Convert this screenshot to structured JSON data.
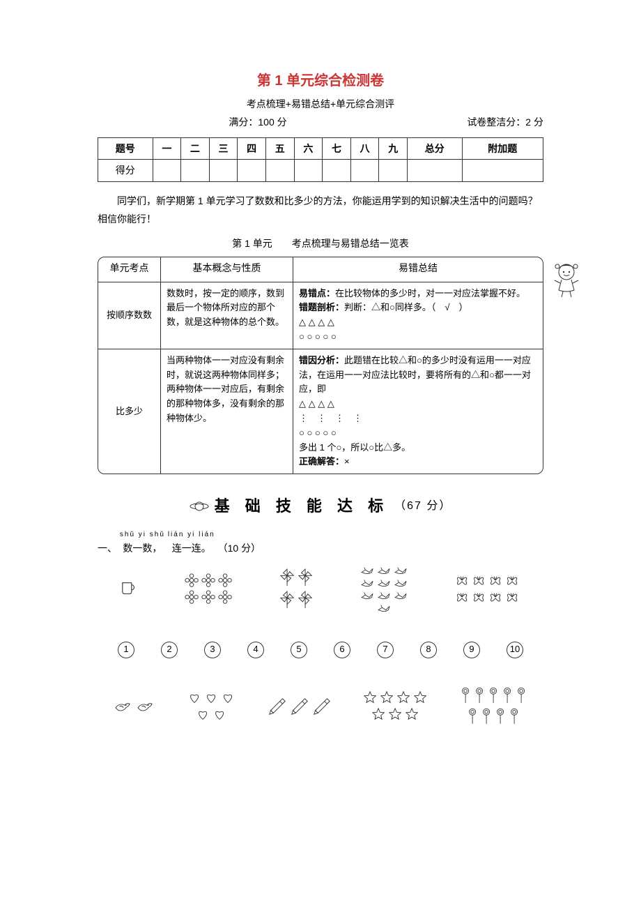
{
  "title_color": "#cc3333",
  "title": "第 1 单元综合检测卷",
  "subtitle": "考点梳理+易错总结+单元综合测评",
  "full_score_label": "满分：100 分",
  "tidy_label": "试卷整洁分：2 分",
  "score_table": {
    "headers": [
      "题号",
      "一",
      "二",
      "三",
      "四",
      "五",
      "六",
      "七",
      "八",
      "九",
      "总分",
      "附加题"
    ],
    "row_label": "得分"
  },
  "intro": "同学们，新学期第 1 单元学习了数数和比多少的方法，你能运用学到的知识解决生活中的问题吗？相信你能行！",
  "review_caption": "第 1 单元　　考点梳理与易错总结一览表",
  "review": {
    "headers": [
      "单元考点",
      "基本概念与性质",
      "易错总结"
    ],
    "rows": [
      {
        "point": "按顺序数数",
        "concept": "数数时，按一定的顺序，数到最后一个物体所对应的那个数，就是这种物体的总个数。",
        "mistake_lead": "易错点：",
        "mistake_body": "在比较物体的多少时，对一一对应法掌握不好。",
        "analysis_lead": "错题剖析：",
        "analysis_body": "判断：△和○同样多。（　√　）",
        "shapes1": "△ △ △ △",
        "shapes2": "○ ○ ○ ○ ○"
      },
      {
        "point": "比多少",
        "concept": "当两种物体一一对应没有剩余时，就说这两种物体同样多；两种物体一一对应后，有剩余的那种物体多，没有剩余的那种物体少。",
        "reason_lead": "错因分析：",
        "reason_body": "此题错在比较△和○的多少时没有运用一一对应法，在运用一一对应法比较时，要将所有的△和○都一一对应，即",
        "map_tri": "△ △ △ △",
        "map_dots": "⋮　⋮　⋮　⋮",
        "map_cir": "○ ○ ○ ○ ○",
        "conclude": "多出 1 个○，所以○比△多。",
        "answer_lead": "正确解答：",
        "answer": "×"
      }
    ]
  },
  "banner": "基 础 技 能 达 标",
  "banner_score": "（67 分）",
  "q1": {
    "num": "一、",
    "py1": "shǔ yi shǔ",
    "w1": "数一数，",
    "py2": "lián yi lián",
    "w2": "连一连。",
    "score": "（10 分）"
  },
  "numbers": [
    "1",
    "2",
    "3",
    "4",
    "5",
    "6",
    "7",
    "8",
    "9",
    "10"
  ],
  "top_groups": [
    {
      "name": "cup",
      "count": 1
    },
    {
      "name": "flower",
      "count": 6
    },
    {
      "name": "pinwheel",
      "count": 4
    },
    {
      "name": "crane",
      "count": 10
    },
    {
      "name": "butterfly",
      "count": 8
    }
  ],
  "bottom_groups": [
    {
      "name": "bird",
      "count": 2
    },
    {
      "name": "heart",
      "count": 5
    },
    {
      "name": "pencil",
      "count": 3
    },
    {
      "name": "star",
      "count": 7
    },
    {
      "name": "lollipop",
      "count": 9
    }
  ]
}
